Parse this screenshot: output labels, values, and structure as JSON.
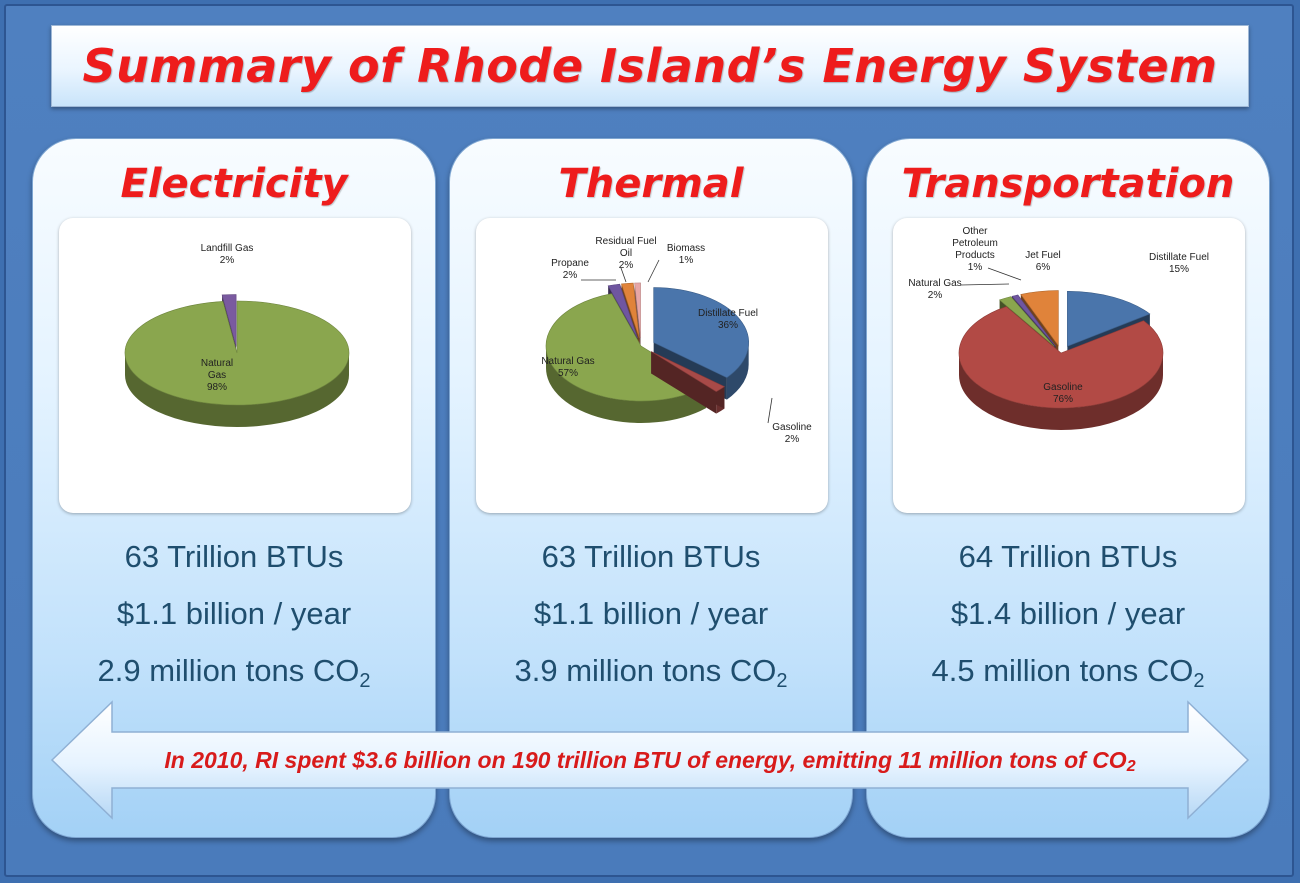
{
  "title": "Summary of Rhode Island’s Energy System",
  "colors": {
    "title_red": "#ee1c1c",
    "stat_text": "#1f4e6e",
    "background_blue": "#3e6fb0"
  },
  "panels": [
    {
      "title": "Electricity",
      "stats": {
        "btu": "63 Trillion BTUs",
        "cost": "$1.1 billion / year",
        "co2_prefix": "2.9 million tons CO",
        "co2_sub": "2"
      }
    },
    {
      "title": "Thermal",
      "stats": {
        "btu": "63 Trillion BTUs",
        "cost": "$1.1 billion / year",
        "co2_prefix": "3.9 million tons CO",
        "co2_sub": "2"
      }
    },
    {
      "title": "Transportation",
      "stats": {
        "btu": "64 Trillion BTUs",
        "cost": "$1.4 billion / year",
        "co2_prefix": "4.5 million tons CO",
        "co2_sub": "2"
      }
    }
  ],
  "arrow": {
    "text_prefix": "In 2010, RI spent $3.6 billion on 190 trillion BTU of energy, emitting 11 million tons of CO",
    "text_sub": "2"
  },
  "chart_data": [
    {
      "type": "pie",
      "title": "Electricity",
      "slices": [
        {
          "label": "Natural Gas",
          "value": 98,
          "display_lines": [
            "Natural",
            "Gas",
            "98%"
          ],
          "color": "#8aa64e"
        },
        {
          "label": "Landfill Gas",
          "value": 2,
          "display_lines": [
            "Landfill Gas",
            "2%"
          ],
          "color": "#7a5aa0",
          "exploded": true
        }
      ]
    },
    {
      "type": "pie",
      "title": "Thermal",
      "slices": [
        {
          "label": "Distillate Fuel",
          "value": 36,
          "display_lines": [
            "Distillate Fuel",
            "36%"
          ],
          "color": "#4a75ab",
          "exploded": true
        },
        {
          "label": "Gasoline",
          "value": 2,
          "display_lines": [
            "Gasoline",
            "2%"
          ],
          "color": "#a84a48",
          "exploded": true
        },
        {
          "label": "Natural Gas",
          "value": 57,
          "display_lines": [
            "Natural Gas",
            "57%"
          ],
          "color": "#8aa64e"
        },
        {
          "label": "Propane",
          "value": 2,
          "display_lines": [
            "Propane",
            "2%"
          ],
          "color": "#6f56a0",
          "exploded": true
        },
        {
          "label": "Residual Fuel Oil",
          "value": 2,
          "display_lines": [
            "Residual Fuel",
            "Oil",
            "2%"
          ],
          "color": "#e0833a",
          "exploded": true
        },
        {
          "label": "Biomass",
          "value": 1,
          "display_lines": [
            "Biomass",
            "1%"
          ],
          "color": "#e7a6a6",
          "exploded": true
        }
      ]
    },
    {
      "type": "pie",
      "title": "Transportation",
      "slices": [
        {
          "label": "Distillate Fuel",
          "value": 15,
          "display_lines": [
            "Distillate Fuel",
            "15%"
          ],
          "color": "#4a75ab",
          "exploded": true
        },
        {
          "label": "Gasoline",
          "value": 76,
          "display_lines": [
            "Gasoline",
            "76%"
          ],
          "color": "#b24a45"
        },
        {
          "label": "Natural Gas",
          "value": 2,
          "display_lines": [
            "Natural Gas",
            "2%"
          ],
          "color": "#8aa64e",
          "exploded": true
        },
        {
          "label": "Other Petroleum Products",
          "value": 1,
          "display_lines": [
            "Other",
            "Petroleum",
            "Products",
            "1%"
          ],
          "color": "#6f56a0",
          "exploded": true
        },
        {
          "label": "Jet Fuel",
          "value": 6,
          "display_lines": [
            "Jet Fuel",
            "6%"
          ],
          "color": "#e0833a",
          "exploded": true
        }
      ]
    }
  ]
}
